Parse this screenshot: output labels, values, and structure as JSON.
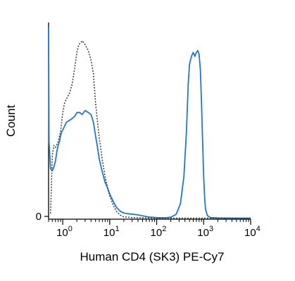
{
  "chart_data": {
    "type": "line",
    "xlabel": "Human CD4 (SK3) PE-Cy7",
    "ylabel": "Count",
    "x_scale": "log",
    "xlim": [
      0.5,
      10000
    ],
    "ylim": [
      0,
      100
    ],
    "x_ticks": [
      {
        "base": "10",
        "exp": "0",
        "value": 1
      },
      {
        "base": "10",
        "exp": "1",
        "value": 10
      },
      {
        "base": "10",
        "exp": "2",
        "value": 100
      },
      {
        "base": "10",
        "exp": "3",
        "value": 1000
      },
      {
        "base": "10",
        "exp": "4",
        "value": 10000
      }
    ],
    "y_ticks": [
      {
        "label": "0",
        "value": 0
      }
    ],
    "grid": false,
    "series": [
      {
        "style": "solid",
        "color": "#1f78c8",
        "points": [
          [
            0.5,
            99
          ],
          [
            0.51,
            40
          ],
          [
            0.55,
            26
          ],
          [
            0.6,
            25
          ],
          [
            0.65,
            27
          ],
          [
            0.7,
            30
          ],
          [
            0.75,
            35
          ],
          [
            0.8,
            38
          ],
          [
            0.85,
            40
          ],
          [
            0.9,
            43
          ],
          [
            0.95,
            45
          ],
          [
            1.0,
            46
          ],
          [
            1.1,
            48
          ],
          [
            1.2,
            50
          ],
          [
            1.4,
            51
          ],
          [
            1.6,
            52
          ],
          [
            1.8,
            53
          ],
          [
            2.0,
            55
          ],
          [
            2.3,
            55
          ],
          [
            2.6,
            54
          ],
          [
            3.0,
            56
          ],
          [
            3.5,
            55
          ],
          [
            4.0,
            54
          ],
          [
            4.5,
            50
          ],
          [
            5.0,
            43
          ],
          [
            5.5,
            37
          ],
          [
            6.0,
            31
          ],
          [
            7.0,
            24
          ],
          [
            8.0,
            19
          ],
          [
            9.0,
            16
          ],
          [
            10.0,
            13
          ],
          [
            12.0,
            9
          ],
          [
            14.0,
            6
          ],
          [
            17.0,
            4
          ],
          [
            20.0,
            3.2
          ],
          [
            25.0,
            2.8
          ],
          [
            30.0,
            2.6
          ],
          [
            40.0,
            2.2
          ],
          [
            50.0,
            1.7
          ],
          [
            70.0,
            1.1
          ],
          [
            100.0,
            0.8
          ],
          [
            150.0,
            0.7
          ],
          [
            200.0,
            1.0
          ],
          [
            260.0,
            2.5
          ],
          [
            320.0,
            8
          ],
          [
            380.0,
            22
          ],
          [
            430.0,
            45
          ],
          [
            470.0,
            70
          ],
          [
            500.0,
            80
          ],
          [
            550.0,
            84
          ],
          [
            600.0,
            86
          ],
          [
            650.0,
            84
          ],
          [
            700.0,
            86
          ],
          [
            750.0,
            87
          ],
          [
            800.0,
            85
          ],
          [
            850.0,
            77
          ],
          [
            900.0,
            60
          ],
          [
            950.0,
            40
          ],
          [
            1000.0,
            22
          ],
          [
            1050.0,
            11
          ],
          [
            1100.0,
            5
          ],
          [
            1200.0,
            1.8
          ],
          [
            1400.0,
            0.8
          ],
          [
            2000.0,
            0.6
          ],
          [
            5000.0,
            0.5
          ],
          [
            10000.0,
            0.5
          ]
        ]
      },
      {
        "style": "dotted",
        "color": "#444444",
        "points": [
          [
            0.55,
            3
          ],
          [
            0.6,
            33
          ],
          [
            0.65,
            38
          ],
          [
            0.7,
            37
          ],
          [
            0.8,
            40
          ],
          [
            0.9,
            45
          ],
          [
            1.0,
            55
          ],
          [
            1.1,
            60
          ],
          [
            1.2,
            62
          ],
          [
            1.4,
            65
          ],
          [
            1.6,
            70
          ],
          [
            1.8,
            78
          ],
          [
            2.0,
            86
          ],
          [
            2.2,
            90
          ],
          [
            2.4,
            91
          ],
          [
            2.6,
            92
          ],
          [
            3.0,
            90
          ],
          [
            3.5,
            87
          ],
          [
            4.0,
            82
          ],
          [
            4.5,
            75
          ],
          [
            5.0,
            60
          ],
          [
            5.5,
            50
          ],
          [
            6.0,
            42
          ],
          [
            7.0,
            30
          ],
          [
            8.0,
            22
          ],
          [
            9.0,
            16
          ],
          [
            10.0,
            12
          ],
          [
            12.0,
            7
          ],
          [
            14.0,
            4
          ],
          [
            17.0,
            2
          ],
          [
            20.0,
            1.2
          ],
          [
            30.0,
            0.8
          ],
          [
            100.0,
            0.5
          ],
          [
            10000.0,
            0.5
          ]
        ]
      }
    ]
  }
}
